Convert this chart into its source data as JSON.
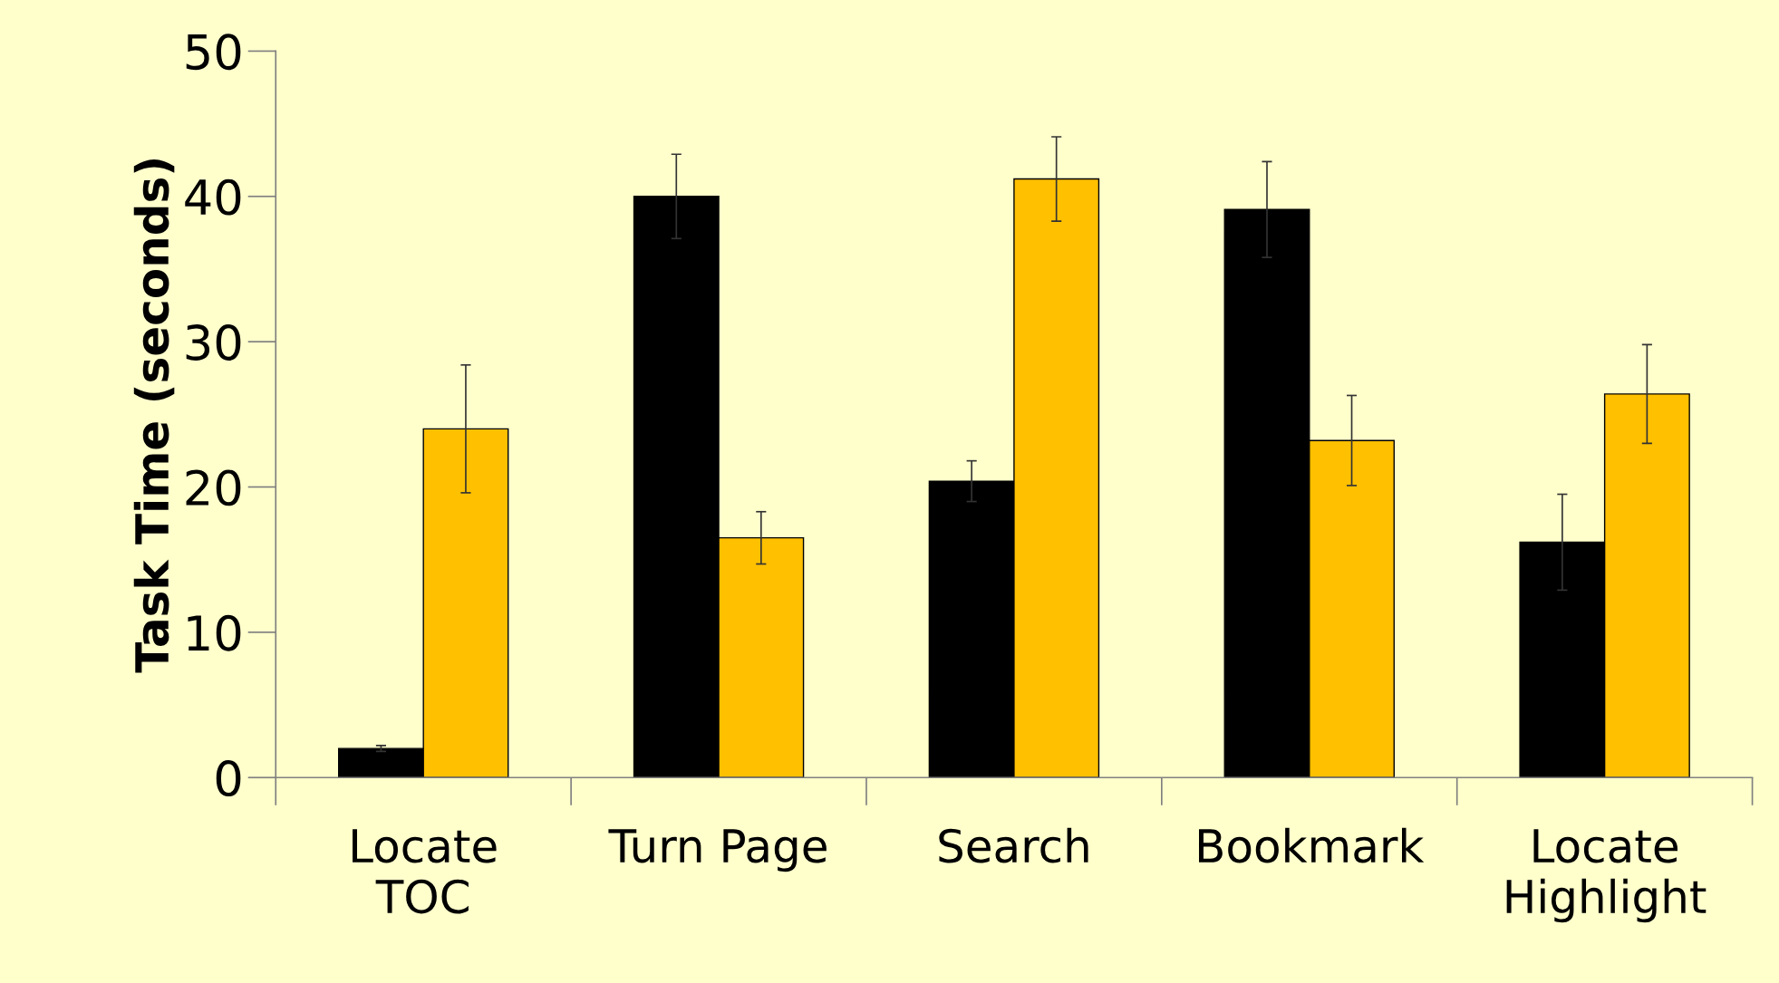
{
  "chart_data": {
    "type": "bar",
    "ylabel": "Task Time (seconds)",
    "categories": [
      "Locate\nTOC",
      "Turn Page",
      "Search",
      "Bookmark",
      "Locate\nHighlight"
    ],
    "series": [
      {
        "color": "#000000",
        "values": [
          2.0,
          40.0,
          20.4,
          39.1,
          16.2
        ],
        "errors": [
          0.2,
          2.9,
          1.4,
          3.3,
          3.3
        ]
      },
      {
        "color": "#ffc000",
        "values": [
          24.0,
          16.5,
          41.2,
          23.2,
          26.4
        ],
        "errors": [
          4.4,
          1.8,
          2.9,
          3.1,
          3.4
        ]
      }
    ],
    "ylim": [
      0,
      50
    ],
    "yticks": [
      0,
      10,
      20,
      30,
      40,
      50
    ],
    "grid": false,
    "legend": false
  }
}
